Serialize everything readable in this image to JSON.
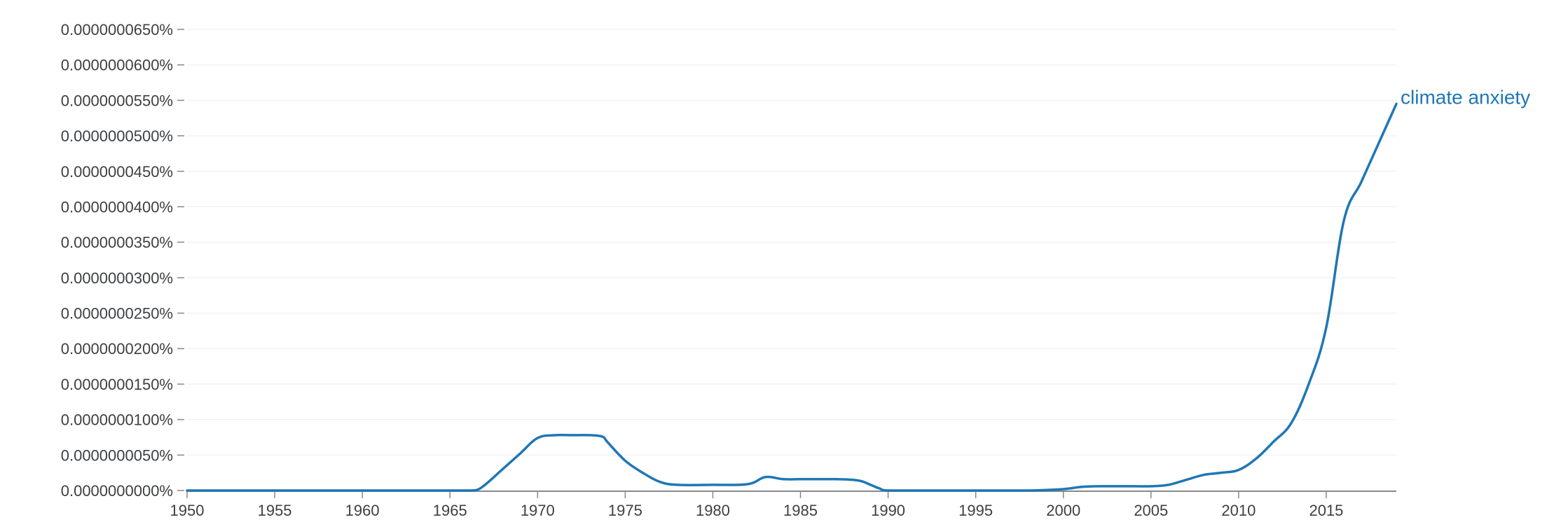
{
  "chart_data": {
    "type": "line",
    "title": "",
    "xlabel": "",
    "ylabel": "",
    "xlim": [
      1950,
      2019
    ],
    "ylim": [
      0,
      6.5e-08
    ],
    "grid": true,
    "legend": "inline-end-label",
    "colors": {
      "series": "#1f77b4",
      "grid": "#eeeeee",
      "axis": "#888888",
      "text": "#3c4043"
    },
    "x_ticks": [
      "1950",
      "1955",
      "1960",
      "1965",
      "1970",
      "1975",
      "1980",
      "1985",
      "1990",
      "1995",
      "2000",
      "2005",
      "2010",
      "2015"
    ],
    "y_ticks": [
      "0.0000000000%",
      "0.0000000050%",
      "0.0000000100%",
      "0.0000000150%",
      "0.0000000200%",
      "0.0000000250%",
      "0.0000000300%",
      "0.0000000350%",
      "0.0000000400%",
      "0.0000000450%",
      "0.0000000500%",
      "0.0000000550%",
      "0.0000000600%",
      "0.0000000650%"
    ],
    "series": [
      {
        "name": "climate anxiety",
        "x": [
          1950,
          1955,
          1960,
          1965,
          1966,
          1966.5,
          1967,
          1968,
          1969,
          1970,
          1971,
          1972,
          1973,
          1973.7,
          1974,
          1975,
          1976,
          1977,
          1978,
          1980,
          1982,
          1983,
          1984,
          1985,
          1986,
          1987,
          1988,
          1988.5,
          1989,
          1989.5,
          1990,
          1992,
          1995,
          1998,
          2000,
          2001,
          2002,
          2004,
          2005,
          2006,
          2007,
          2008,
          2009,
          2010,
          2011,
          2012,
          2013,
          2014,
          2015,
          2016,
          2017,
          2018,
          2019
        ],
        "y": [
          0,
          0,
          0,
          0,
          0,
          5e-11,
          8e-10,
          3e-09,
          5.2e-09,
          7.4e-09,
          7.8e-09,
          7.8e-09,
          7.8e-09,
          7.6e-09,
          6.8e-09,
          4.2e-09,
          2.5e-09,
          1.2e-09,
          8e-10,
          8e-10,
          9e-10,
          1.9e-09,
          1.6e-09,
          1.6e-09,
          1.6e-09,
          1.6e-09,
          1.5e-09,
          1.3e-09,
          8e-10,
          3e-10,
          0,
          0,
          0,
          0,
          2e-10,
          5e-10,
          6e-10,
          6e-10,
          6e-10,
          8e-10,
          1.5e-09,
          2.2e-09,
          2.5e-09,
          2.9e-09,
          4.5e-09,
          6.9e-09,
          9.5e-09,
          1.5e-08,
          2.3e-08,
          3.8e-08,
          4.35e-08,
          4.9e-08,
          5.45e-08
        ]
      }
    ]
  }
}
